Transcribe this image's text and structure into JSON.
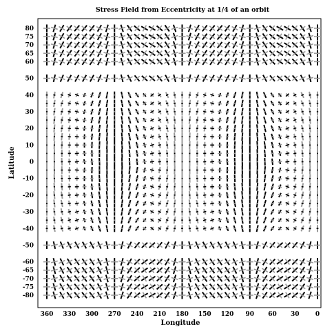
{
  "chart_data": {
    "type": "scatter",
    "title": "Stress Field from Eccentricity at 1/4 of an orbit",
    "xlabel": "Longitude",
    "ylabel": "Latitude",
    "x_ticks": [
      360,
      330,
      300,
      270,
      240,
      210,
      180,
      150,
      120,
      90,
      60,
      30,
      0
    ],
    "y_ticks": [
      80,
      75,
      70,
      65,
      60,
      50,
      40,
      30,
      20,
      10,
      0,
      -10,
      -20,
      -30,
      -40,
      -50,
      -60,
      -65,
      -70,
      -75,
      -80
    ],
    "xlim": [
      360,
      0
    ],
    "ylim": [
      -80,
      80
    ],
    "x_reversed": true,
    "grid": false,
    "legend": "none",
    "glyph": "crossed stress bars (principal stress directions)",
    "colors": {
      "compression": "#000000",
      "tension": "#999999"
    },
    "sample_longitudes": [
      360,
      350,
      340,
      330,
      320,
      310,
      300,
      290,
      280,
      270,
      260,
      250,
      240,
      230,
      220,
      210,
      200,
      190,
      180,
      170,
      160,
      150,
      140,
      130,
      120,
      110,
      100,
      90,
      80,
      70,
      60,
      50,
      40,
      30,
      20,
      10,
      0
    ],
    "sample_latitudes": [
      80,
      75,
      70,
      65,
      60,
      50,
      40,
      35,
      30,
      25,
      20,
      15,
      10,
      5,
      0,
      -5,
      -10,
      -15,
      -20,
      -25,
      -30,
      -35,
      -40,
      -50,
      -60,
      -65,
      -70,
      -75,
      -80
    ]
  }
}
